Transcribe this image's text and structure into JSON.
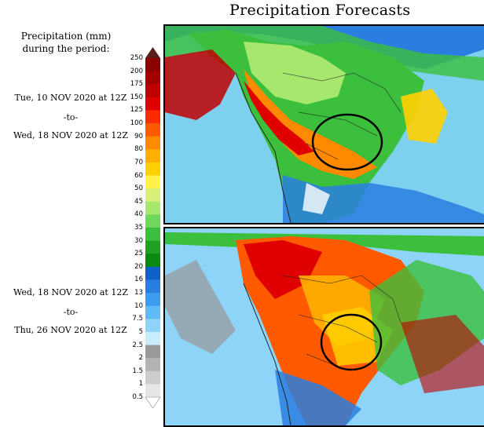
{
  "title": "Precipitation Forecasts",
  "period_heading": [
    "Precipitation (mm)",
    "during the period:"
  ],
  "periods": [
    {
      "start": "Tue, 10 NOV 2020 at 12Z",
      "sep": "-to-",
      "end": "Wed, 18 NOV 2020 at 12Z"
    },
    {
      "start": "Wed, 18 NOV 2020 at 12Z",
      "sep": "-to-",
      "end": "Thu, 26 NOV 2020 at 12Z"
    }
  ],
  "legend": {
    "labels": [
      "250",
      "200",
      "175",
      "150",
      "125",
      "100",
      "90",
      "80",
      "70",
      "60",
      "50",
      "45",
      "40",
      "35",
      "30",
      "25",
      "20",
      "16",
      "13",
      "10",
      "7.5",
      "5",
      "2.5",
      "2",
      "1.5",
      "1",
      "0.5"
    ],
    "colors": [
      "#5a1d18",
      "#8b0000",
      "#a30000",
      "#c00000",
      "#e00000",
      "#ff2a00",
      "#ff5a00",
      "#ff8a00",
      "#ffb000",
      "#ffd000",
      "#fff04a",
      "#d8f07a",
      "#a6e86e",
      "#6fd85c",
      "#3cbf3c",
      "#1fa020",
      "#0a8a10",
      "#1060c8",
      "#2a7ee0",
      "#3c9cf0",
      "#60baf5",
      "#8ed4f8",
      "#c8ecfb",
      "#999999",
      "#b3b3b3",
      "#cccccc",
      "#e6e6e6",
      "#ffffff"
    ]
  },
  "maps": [
    {
      "panel": "Tue, 10 NOV 2020 at 12Z to Wed, 18 NOV 2020 at 12Z",
      "highlight": "circle"
    },
    {
      "panel": "Wed, 18 NOV 2020 at 12Z to Thu, 26 NOV 2020 at 12Z",
      "highlight": "circle"
    }
  ]
}
